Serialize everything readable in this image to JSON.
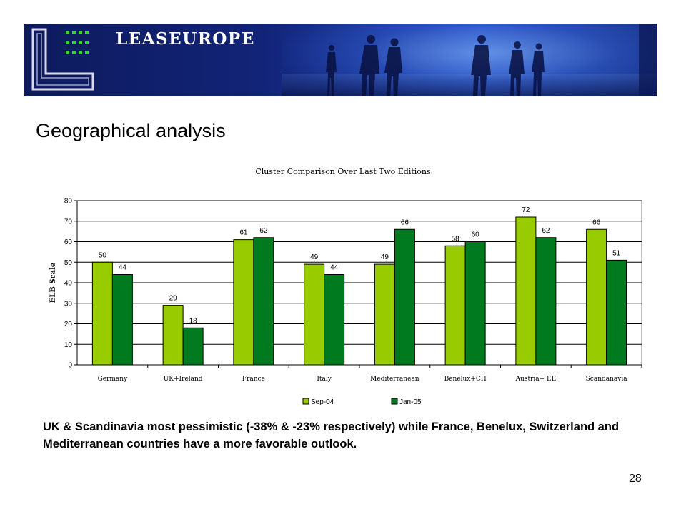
{
  "banner": {
    "brand": "LEASEUROPE"
  },
  "slide": {
    "title": "Geographical analysis",
    "caption": "UK & Scandinavia most pessimistic (-38% & -23% respectively) while France, Benelux, Switzerland and Mediterranean countries have a more favorable outlook.",
    "page_number": "28"
  },
  "chart_data": {
    "type": "bar",
    "title": "Cluster Comparison Over Last Two Editions",
    "xlabel": "",
    "ylabel": "ELB Scale",
    "ylim": [
      0,
      80
    ],
    "yticks": [
      0,
      10,
      20,
      30,
      40,
      50,
      60,
      70,
      80
    ],
    "grid": true,
    "legend_position": "bottom",
    "categories": [
      "Germany",
      "UK+Ireland",
      "France",
      "Italy",
      "Mediterranean",
      "Benelux+CH",
      "Austria+ EE",
      "Scandanavia"
    ],
    "series": [
      {
        "name": "Sep-04",
        "color": "#99cc00",
        "values": [
          50,
          29,
          61,
          49,
          49,
          58,
          72,
          66
        ]
      },
      {
        "name": "Jan-05",
        "color": "#007a1f",
        "values": [
          44,
          18,
          62,
          44,
          66,
          60,
          62,
          51
        ]
      }
    ]
  }
}
